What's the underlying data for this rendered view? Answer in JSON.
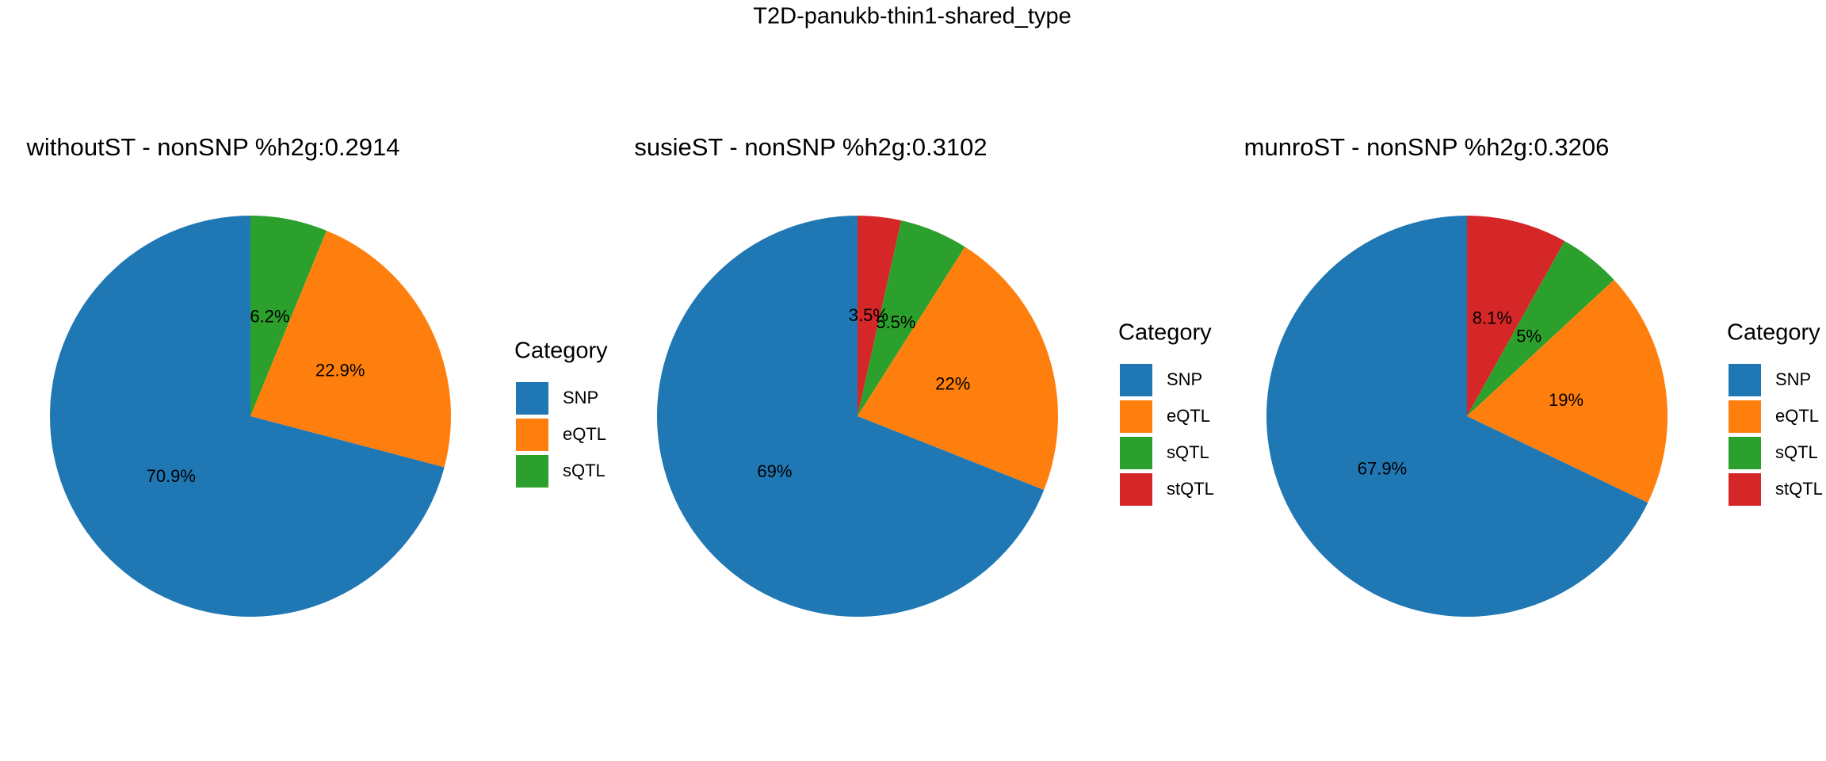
{
  "title": "T2D-panukb-thin1-shared_type",
  "chart_data": [
    {
      "type": "pie",
      "title": "withoutST - nonSNP %h2g:0.2914",
      "legend_title": "Category",
      "categories": [
        "SNP",
        "eQTL",
        "sQTL"
      ],
      "values": [
        70.9,
        22.9,
        6.2
      ],
      "value_labels": [
        "70.9%",
        "22.9%",
        "6.2%"
      ],
      "colors": [
        "#1f77b4",
        "#ff7f0e",
        "#2ca02c"
      ]
    },
    {
      "type": "pie",
      "title": "susieST - nonSNP %h2g:0.3102",
      "legend_title": "Category",
      "categories": [
        "SNP",
        "eQTL",
        "sQTL",
        "stQTL"
      ],
      "values": [
        69,
        22,
        5.5,
        3.5
      ],
      "value_labels": [
        "69%",
        "22%",
        "5.5%",
        "3.5%"
      ],
      "colors": [
        "#1f77b4",
        "#ff7f0e",
        "#2ca02c",
        "#d62728"
      ]
    },
    {
      "type": "pie",
      "title": "munroST - nonSNP %h2g:0.3206",
      "legend_title": "Category",
      "categories": [
        "SNP",
        "eQTL",
        "sQTL",
        "stQTL"
      ],
      "values": [
        67.9,
        19,
        5,
        8.1
      ],
      "value_labels": [
        "67.9%",
        "19%",
        "5%",
        "8.1%"
      ],
      "colors": [
        "#1f77b4",
        "#ff7f0e",
        "#2ca02c",
        "#d62728"
      ]
    }
  ]
}
